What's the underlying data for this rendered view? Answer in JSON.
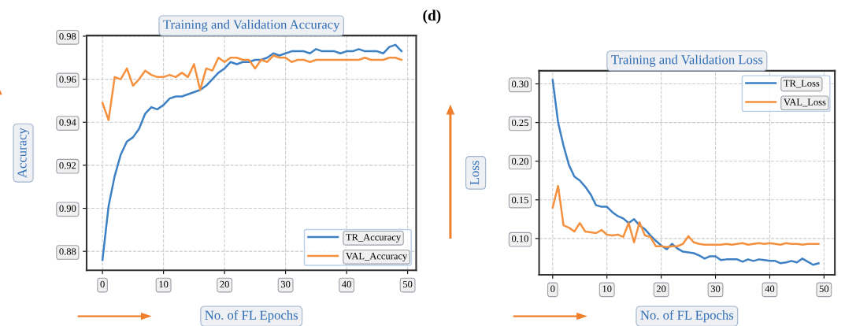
{
  "chart_data": [
    {
      "type": "line",
      "title": "Training and Validation Accuracy",
      "xlabel": "No. of FL Epochs",
      "ylabel": "Accuracy",
      "annotations": [
        "(d)"
      ],
      "x": [
        0,
        1,
        2,
        3,
        4,
        5,
        6,
        7,
        8,
        9,
        10,
        11,
        12,
        13,
        14,
        15,
        16,
        17,
        18,
        19,
        20,
        21,
        22,
        23,
        24,
        25,
        26,
        27,
        28,
        29,
        30,
        31,
        32,
        33,
        34,
        35,
        36,
        37,
        38,
        39,
        40,
        41,
        42,
        43,
        44,
        45,
        46,
        47,
        48,
        49
      ],
      "series": [
        {
          "name": "TR_Accuracy",
          "color": "#3d80c3",
          "values": [
            0.876,
            0.901,
            0.915,
            0.925,
            0.931,
            0.933,
            0.937,
            0.944,
            0.947,
            0.946,
            0.948,
            0.951,
            0.952,
            0.952,
            0.953,
            0.954,
            0.955,
            0.957,
            0.96,
            0.963,
            0.965,
            0.968,
            0.967,
            0.968,
            0.968,
            0.969,
            0.969,
            0.97,
            0.972,
            0.971,
            0.972,
            0.973,
            0.973,
            0.973,
            0.972,
            0.974,
            0.973,
            0.973,
            0.973,
            0.972,
            0.973,
            0.973,
            0.974,
            0.973,
            0.973,
            0.973,
            0.972,
            0.975,
            0.976,
            0.973
          ]
        },
        {
          "name": "VAL_Accuracy",
          "color": "#f5913e",
          "values": [
            0.949,
            0.941,
            0.961,
            0.96,
            0.965,
            0.957,
            0.96,
            0.964,
            0.962,
            0.961,
            0.961,
            0.962,
            0.961,
            0.963,
            0.961,
            0.967,
            0.955,
            0.965,
            0.964,
            0.97,
            0.968,
            0.97,
            0.97,
            0.969,
            0.969,
            0.965,
            0.969,
            0.968,
            0.971,
            0.97,
            0.97,
            0.968,
            0.969,
            0.969,
            0.968,
            0.969,
            0.969,
            0.969,
            0.969,
            0.969,
            0.969,
            0.969,
            0.969,
            0.97,
            0.969,
            0.969,
            0.969,
            0.97,
            0.97,
            0.969
          ]
        }
      ],
      "xlim": [
        -2.6,
        51.4
      ],
      "xticks": [
        0,
        10,
        20,
        30,
        40,
        50
      ],
      "ylim": [
        0.8712,
        0.9803
      ],
      "yticks": [
        {
          "value": 0.88,
          "label": "0.88"
        },
        {
          "value": 0.9,
          "label": "0.90"
        },
        {
          "value": 0.92,
          "label": "0.92"
        },
        {
          "value": 0.94,
          "label": "0.94"
        },
        {
          "value": 0.96,
          "label": "0.96"
        },
        {
          "value": 0.98,
          "label": "0.98"
        }
      ],
      "grid": true,
      "legend": "bottom right",
      "marker": "none",
      "line_style": "solid"
    },
    {
      "type": "line",
      "title": "Training and Validation Loss",
      "xlabel": "No. of FL Epochs",
      "ylabel": "Loss",
      "x": [
        0,
        1,
        2,
        3,
        4,
        5,
        6,
        7,
        8,
        9,
        10,
        11,
        12,
        13,
        14,
        15,
        16,
        17,
        18,
        19,
        20,
        21,
        22,
        23,
        24,
        25,
        26,
        27,
        28,
        29,
        30,
        31,
        32,
        33,
        34,
        35,
        36,
        37,
        38,
        39,
        40,
        41,
        42,
        43,
        44,
        45,
        46,
        47,
        48,
        49
      ],
      "series": [
        {
          "name": "TR_Loss",
          "color": "#3d80c3",
          "values": [
            0.305,
            0.25,
            0.22,
            0.195,
            0.18,
            0.175,
            0.167,
            0.157,
            0.143,
            0.141,
            0.141,
            0.134,
            0.129,
            0.126,
            0.12,
            0.125,
            0.117,
            0.112,
            0.104,
            0.097,
            0.091,
            0.086,
            0.093,
            0.087,
            0.083,
            0.082,
            0.081,
            0.078,
            0.074,
            0.077,
            0.077,
            0.072,
            0.073,
            0.073,
            0.073,
            0.07,
            0.073,
            0.071,
            0.073,
            0.072,
            0.071,
            0.071,
            0.068,
            0.069,
            0.071,
            0.069,
            0.074,
            0.07,
            0.066,
            0.068
          ]
        },
        {
          "name": "VAL_Loss",
          "color": "#f5913e",
          "values": [
            0.14,
            0.168,
            0.117,
            0.114,
            0.109,
            0.12,
            0.109,
            0.108,
            0.107,
            0.111,
            0.105,
            0.104,
            0.105,
            0.102,
            0.12,
            0.095,
            0.121,
            0.104,
            0.102,
            0.09,
            0.09,
            0.089,
            0.09,
            0.09,
            0.093,
            0.103,
            0.095,
            0.093,
            0.092,
            0.092,
            0.092,
            0.092,
            0.093,
            0.092,
            0.093,
            0.094,
            0.092,
            0.093,
            0.094,
            0.093,
            0.094,
            0.093,
            0.092,
            0.094,
            0.093,
            0.093,
            0.092,
            0.093,
            0.093,
            0.093
          ]
        }
      ],
      "xlim": [
        -2.5,
        52
      ],
      "xticks": [
        0,
        10,
        20,
        30,
        40,
        50
      ],
      "ylim": [
        0.053,
        0.317
      ],
      "yticks": [
        {
          "value": 0.1,
          "label": "0.10"
        },
        {
          "value": 0.15,
          "label": "0.15"
        },
        {
          "value": 0.2,
          "label": "0.20"
        },
        {
          "value": 0.25,
          "label": "0.25"
        },
        {
          "value": 0.3,
          "label": "0.30"
        }
      ],
      "grid": true,
      "legend": "top right",
      "marker": "none",
      "line_style": "solid"
    }
  ]
}
